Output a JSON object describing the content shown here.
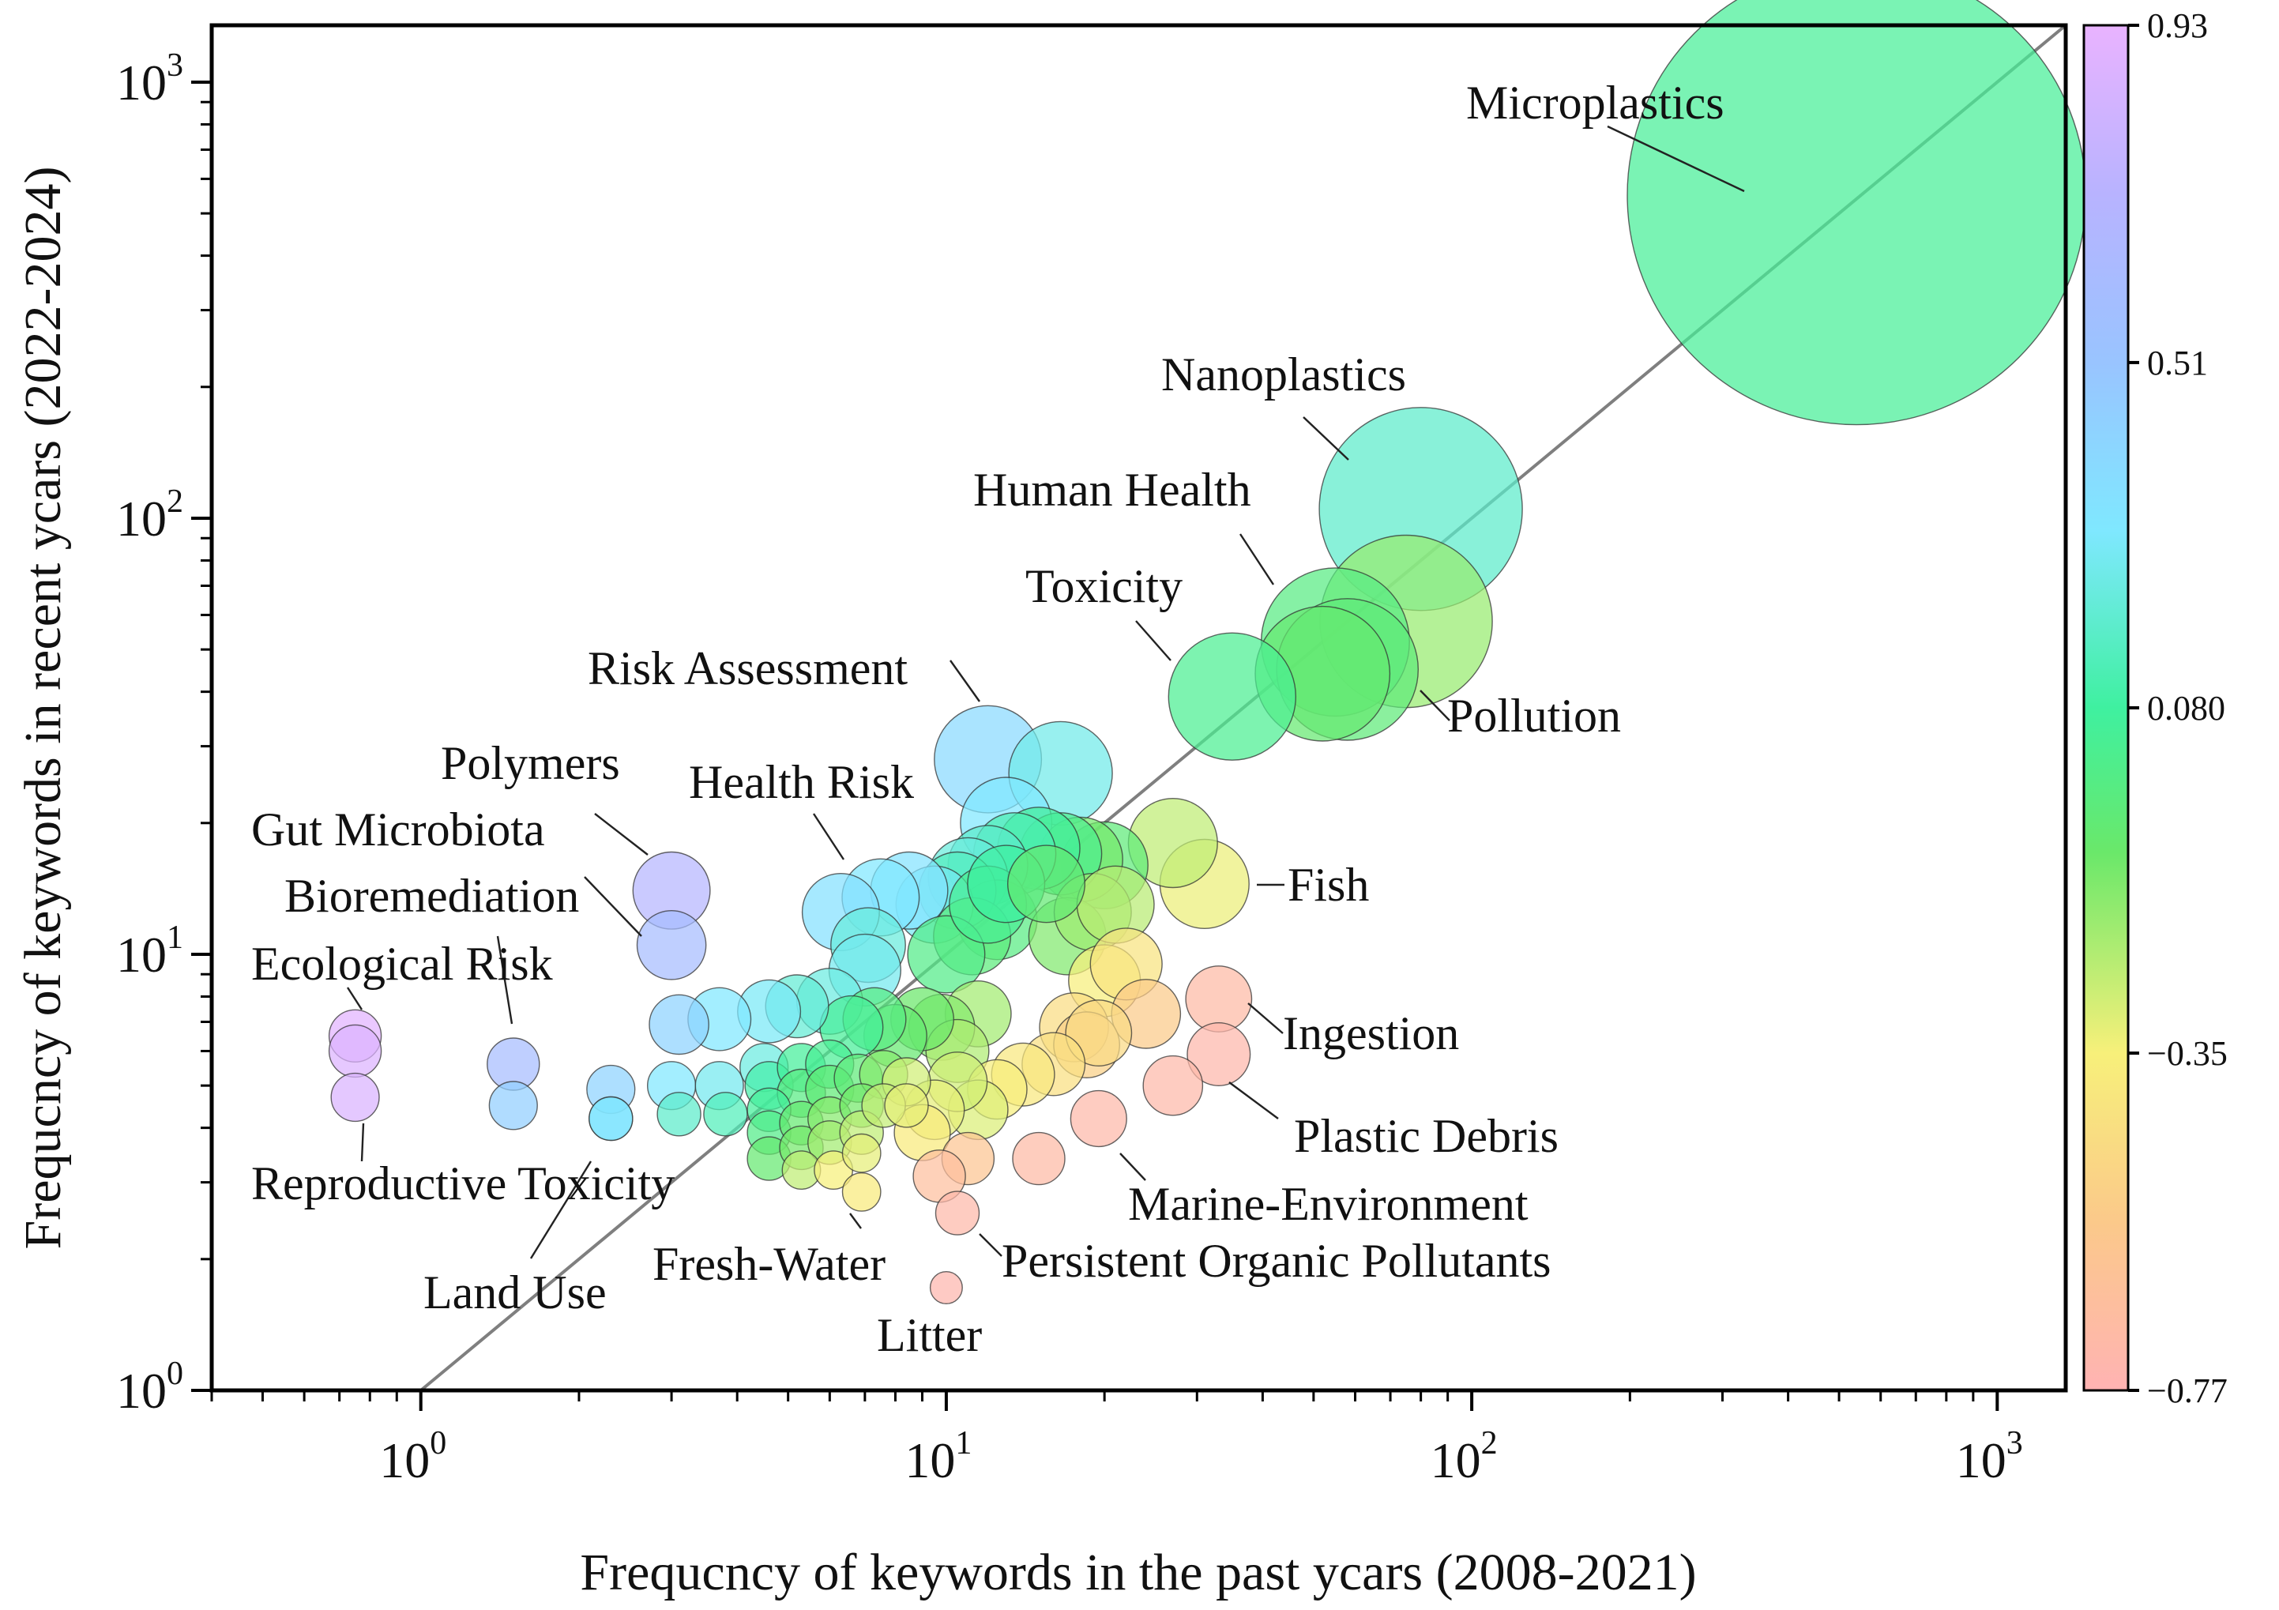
{
  "chart_data": {
    "type": "scatter",
    "subtype": "bubble",
    "xscale": "log",
    "yscale": "log",
    "xlabel": "Frequcncy of keywords in the past ycars (2008-2021)",
    "ylabel": "Frequcncy of keywords in recent ycars (2022-2024)",
    "xlim": [
      0.4,
      1350
    ],
    "ylim": [
      1,
      1350
    ],
    "x_ticks": [
      {
        "value": 1,
        "base": "10",
        "exp": "0"
      },
      {
        "value": 10,
        "base": "10",
        "exp": "1"
      },
      {
        "value": 100,
        "base": "10",
        "exp": "2"
      },
      {
        "value": 1000,
        "base": "10",
        "exp": "3"
      }
    ],
    "y_ticks": [
      {
        "value": 1,
        "base": "10",
        "exp": "0"
      },
      {
        "value": 10,
        "base": "10",
        "exp": "1"
      },
      {
        "value": 100,
        "base": "10",
        "exp": "2"
      },
      {
        "value": 1000,
        "base": "10",
        "exp": "3"
      }
    ],
    "reference_line": "y = x",
    "colorbar": {
      "min": -0.77,
      "max": 0.93,
      "ticks": [
        {
          "value": 0.93,
          "label": "0.93"
        },
        {
          "value": 0.51,
          "label": "0.51"
        },
        {
          "value": 0.08,
          "label": "0.080"
        },
        {
          "value": -0.35,
          "label": "−0.35"
        },
        {
          "value": -0.77,
          "label": "−0.77"
        }
      ],
      "stops": [
        {
          "value": 0.93,
          "color": "#e9b3ff"
        },
        {
          "value": 0.72,
          "color": "#b8b3ff"
        },
        {
          "value": 0.51,
          "color": "#99c4ff"
        },
        {
          "value": 0.3,
          "color": "#7fe8ff"
        },
        {
          "value": 0.08,
          "color": "#3ff0a0"
        },
        {
          "value": -0.1,
          "color": "#6ae86a"
        },
        {
          "value": -0.35,
          "color": "#f7f07a"
        },
        {
          "value": -0.56,
          "color": "#fbc98a"
        },
        {
          "value": -0.77,
          "color": "#ffb3b3"
        }
      ]
    },
    "points": [
      {
        "label": "Microplastics",
        "x": 540,
        "y": 550,
        "size": 550,
        "value": 0.05
      },
      {
        "label": "Nanoplastics",
        "x": 80,
        "y": 105,
        "size": 105,
        "value": 0.18
      },
      {
        "label": "Pollution",
        "x": 75,
        "y": 58,
        "size": 75,
        "value": -0.18
      },
      {
        "label": "Human Health",
        "x": 55,
        "y": 52,
        "size": 55,
        "value": -0.02
      },
      {
        "label": "",
        "x": 58,
        "y": 45,
        "size": 50,
        "value": -0.05
      },
      {
        "label": "",
        "x": 52,
        "y": 44,
        "size": 45,
        "value": -0.08
      },
      {
        "label": "Toxicity",
        "x": 35,
        "y": 39,
        "size": 40,
        "value": 0.03
      },
      {
        "label": "Risk Assessment",
        "x": 12,
        "y": 28,
        "size": 28,
        "value": 0.38
      },
      {
        "label": "",
        "x": 16.5,
        "y": 26,
        "size": 26,
        "value": 0.25
      },
      {
        "label": "",
        "x": 13,
        "y": 20,
        "size": 20,
        "value": 0.3
      },
      {
        "label": "Fish",
        "x": 31,
        "y": 14.5,
        "size": 19,
        "value": -0.33
      },
      {
        "label": "",
        "x": 27,
        "y": 18,
        "size": 19,
        "value": -0.25
      },
      {
        "label": "",
        "x": 20,
        "y": 16,
        "size": 18,
        "value": -0.05
      },
      {
        "label": "",
        "x": 18,
        "y": 16.5,
        "size": 17,
        "value": -0.12
      },
      {
        "label": "",
        "x": 16.5,
        "y": 17,
        "size": 16,
        "value": 0.02
      },
      {
        "label": "",
        "x": 15,
        "y": 17.5,
        "size": 16,
        "value": 0.06
      },
      {
        "label": "",
        "x": 13.5,
        "y": 17,
        "size": 16,
        "value": 0.12
      },
      {
        "label": "",
        "x": 12,
        "y": 16,
        "size": 15,
        "value": 0.18
      },
      {
        "label": "",
        "x": 11,
        "y": 15,
        "size": 15,
        "value": 0.22
      },
      {
        "label": "",
        "x": 10.5,
        "y": 14,
        "size": 14,
        "value": 0.15
      },
      {
        "label": "",
        "x": 9.5,
        "y": 13,
        "size": 14,
        "value": 0.27
      },
      {
        "label": "",
        "x": 8.5,
        "y": 14,
        "size": 14,
        "value": 0.33
      },
      {
        "label": "Health Risk",
        "x": 7.5,
        "y": 13.5,
        "size": 14,
        "value": 0.3
      },
      {
        "label": "",
        "x": 6.3,
        "y": 12.5,
        "size": 14,
        "value": 0.34
      },
      {
        "label": "",
        "x": 7.1,
        "y": 10.5,
        "size": 13,
        "value": 0.22
      },
      {
        "label": "",
        "x": 7,
        "y": 9.2,
        "size": 12,
        "value": 0.26
      },
      {
        "label": "",
        "x": 12.5,
        "y": 12,
        "size": 15,
        "value": -0.02
      },
      {
        "label": "",
        "x": 11.2,
        "y": 11,
        "size": 14,
        "value": -0.04
      },
      {
        "label": "",
        "x": 10,
        "y": 10,
        "size": 14,
        "value": 0.0
      },
      {
        "label": "",
        "x": 12,
        "y": 13,
        "size": 14,
        "value": 0.04
      },
      {
        "label": "",
        "x": 13,
        "y": 14.5,
        "size": 14,
        "value": 0.08
      },
      {
        "label": "",
        "x": 17,
        "y": 11,
        "size": 14,
        "value": -0.14
      },
      {
        "label": "",
        "x": 19,
        "y": 12.5,
        "size": 14,
        "value": -0.19
      },
      {
        "label": "",
        "x": 21,
        "y": 13,
        "size": 14,
        "value": -0.24
      },
      {
        "label": "",
        "x": 15.5,
        "y": 14.5,
        "size": 14,
        "value": -0.07
      },
      {
        "label": "",
        "x": 20,
        "y": 8.7,
        "size": 12,
        "value": -0.36
      },
      {
        "label": "",
        "x": 22,
        "y": 9.5,
        "size": 12,
        "value": -0.42
      },
      {
        "label": "",
        "x": 24,
        "y": 7.3,
        "size": 11,
        "value": -0.55
      },
      {
        "label": "Ingestion",
        "x": 33,
        "y": 7.9,
        "size": 10,
        "value": -0.7
      },
      {
        "label": "Plastic Debris",
        "x": 33,
        "y": 5.9,
        "size": 9,
        "value": -0.73
      },
      {
        "label": "",
        "x": 27,
        "y": 5,
        "size": 8,
        "value": -0.72
      },
      {
        "label": "Marine-Environment",
        "x": 19.5,
        "y": 4.2,
        "size": 7,
        "value": -0.72
      },
      {
        "label": "",
        "x": 15,
        "y": 3.4,
        "size": 6,
        "value": -0.7
      },
      {
        "label": "",
        "x": 11,
        "y": 3.4,
        "size": 6,
        "value": -0.6
      },
      {
        "label": "",
        "x": 9.7,
        "y": 3.1,
        "size": 6,
        "value": -0.66
      },
      {
        "label": "Persistent Organic Pollutants",
        "x": 10.5,
        "y": 2.55,
        "size": 4,
        "value": -0.72
      },
      {
        "label": "Litter",
        "x": 10,
        "y": 1.72,
        "size": 2,
        "value": -0.74
      },
      {
        "label": "",
        "x": 17.5,
        "y": 6.8,
        "size": 11,
        "value": -0.46
      },
      {
        "label": "",
        "x": 18.5,
        "y": 6.2,
        "size": 10,
        "value": -0.52
      },
      {
        "label": "",
        "x": 19.5,
        "y": 6.6,
        "size": 10,
        "value": -0.47
      },
      {
        "label": "",
        "x": 16,
        "y": 5.6,
        "size": 9,
        "value": -0.44
      },
      {
        "label": "",
        "x": 14,
        "y": 5.3,
        "size": 9,
        "value": -0.4
      },
      {
        "label": "",
        "x": 12.5,
        "y": 4.9,
        "size": 8,
        "value": -0.36
      },
      {
        "label": "",
        "x": 11.5,
        "y": 4.4,
        "size": 8,
        "value": -0.3
      },
      {
        "label": "",
        "x": 10.5,
        "y": 5.1,
        "size": 8,
        "value": -0.28
      },
      {
        "label": "",
        "x": 9.5,
        "y": 4.4,
        "size": 8,
        "value": -0.32
      },
      {
        "label": "",
        "x": 9,
        "y": 3.9,
        "size": 7,
        "value": -0.38
      },
      {
        "label": "",
        "x": 10.5,
        "y": 6,
        "size": 9,
        "value": -0.22
      },
      {
        "label": "",
        "x": 11.5,
        "y": 7.3,
        "size": 10,
        "value": -0.2
      },
      {
        "label": "",
        "x": 9.8,
        "y": 6.8,
        "size": 10,
        "value": -0.15
      },
      {
        "label": "",
        "x": 9,
        "y": 7.1,
        "size": 9,
        "value": -0.1
      },
      {
        "label": "",
        "x": 8,
        "y": 6.5,
        "size": 9,
        "value": -0.08
      },
      {
        "label": "",
        "x": 7.3,
        "y": 7.1,
        "size": 9,
        "value": -0.02
      },
      {
        "label": "",
        "x": 6.6,
        "y": 6.8,
        "size": 9,
        "value": 0.05
      },
      {
        "label": "",
        "x": 6,
        "y": 7.8,
        "size": 10,
        "value": 0.23
      },
      {
        "label": "",
        "x": 5.2,
        "y": 7.6,
        "size": 9,
        "value": 0.2
      },
      {
        "label": "",
        "x": 4.6,
        "y": 7.4,
        "size": 9,
        "value": 0.28
      },
      {
        "label": "",
        "x": 3.7,
        "y": 7.1,
        "size": 9,
        "value": 0.3
      },
      {
        "label": "",
        "x": 3.1,
        "y": 6.9,
        "size": 8,
        "value": 0.42
      },
      {
        "label": "Polymers",
        "x": 3,
        "y": 14,
        "size": 14,
        "value": 0.7
      },
      {
        "label": "Gut Microbiota",
        "x": 3,
        "y": 10.5,
        "size": 11,
        "value": 0.6
      },
      {
        "label": "Bioremediation",
        "x": 1.5,
        "y": 5.6,
        "size": 6,
        "value": 0.6
      },
      {
        "label": "",
        "x": 1.5,
        "y": 4.5,
        "size": 5,
        "value": 0.45
      },
      {
        "label": "",
        "x": 2.3,
        "y": 4.9,
        "size": 5,
        "value": 0.42
      },
      {
        "label": "",
        "x": 2.3,
        "y": 4.2,
        "size": 4,
        "value": 0.36
      },
      {
        "label": "Ecological Risk",
        "x": 0.75,
        "y": 6.5,
        "size": 6,
        "value": 0.9
      },
      {
        "label": "",
        "x": 0.75,
        "y": 6,
        "size": 6,
        "value": 0.88
      },
      {
        "label": "Reproductive Toxicity",
        "x": 0.75,
        "y": 4.7,
        "size": 5,
        "value": 0.86
      },
      {
        "label": "",
        "x": 3,
        "y": 5,
        "size": 5,
        "value": 0.3
      },
      {
        "label": "",
        "x": 3.1,
        "y": 4.3,
        "size": 4,
        "value": 0.18
      },
      {
        "label": "",
        "x": 3.7,
        "y": 5,
        "size": 5,
        "value": 0.26
      },
      {
        "label": "",
        "x": 3.8,
        "y": 4.3,
        "size": 4,
        "value": 0.14
      },
      {
        "label": "",
        "x": 4.5,
        "y": 5.5,
        "size": 5,
        "value": 0.23
      },
      {
        "label": "",
        "x": 4.6,
        "y": 5,
        "size": 5,
        "value": 0.1
      },
      {
        "label": "",
        "x": 4.6,
        "y": 4.4,
        "size": 4,
        "value": 0.06
      },
      {
        "label": "",
        "x": 4.6,
        "y": 3.9,
        "size": 4,
        "value": 0.0
      },
      {
        "label": "",
        "x": 4.6,
        "y": 3.4,
        "size": 4,
        "value": -0.08
      },
      {
        "label": "",
        "x": 5.3,
        "y": 5.5,
        "size": 5,
        "value": 0.06
      },
      {
        "label": "",
        "x": 5.3,
        "y": 4.8,
        "size": 5,
        "value": -0.02
      },
      {
        "label": "",
        "x": 5.3,
        "y": 4.1,
        "size": 4,
        "value": -0.08
      },
      {
        "label": "",
        "x": 5.3,
        "y": 3.6,
        "size": 4,
        "value": -0.12
      },
      {
        "label": "",
        "x": 5.3,
        "y": 3.2,
        "size": 3,
        "value": -0.25
      },
      {
        "label": "",
        "x": 6,
        "y": 5.6,
        "size": 5,
        "value": 0.04
      },
      {
        "label": "",
        "x": 6,
        "y": 4.9,
        "size": 5,
        "value": -0.06
      },
      {
        "label": "",
        "x": 6,
        "y": 4.2,
        "size": 4,
        "value": -0.15
      },
      {
        "label": "",
        "x": 6,
        "y": 3.7,
        "size": 4,
        "value": -0.2
      },
      {
        "label": "Fresh-Water",
        "x": 6.1,
        "y": 3.2,
        "size": 3,
        "value": -0.35
      },
      {
        "label": "",
        "x": 6.8,
        "y": 5.2,
        "size": 5,
        "value": -0.05
      },
      {
        "label": "",
        "x": 6.9,
        "y": 4.5,
        "size": 4,
        "value": -0.12
      },
      {
        "label": "",
        "x": 6.9,
        "y": 3.9,
        "size": 4,
        "value": -0.25
      },
      {
        "label": "",
        "x": 6.9,
        "y": 3.5,
        "size": 3,
        "value": -0.32
      },
      {
        "label": "",
        "x": 6.9,
        "y": 2.85,
        "size": 3,
        "value": -0.38
      },
      {
        "label": "",
        "x": 7.6,
        "y": 5.3,
        "size": 5,
        "value": -0.15
      },
      {
        "label": "",
        "x": 7.6,
        "y": 4.5,
        "size": 4,
        "value": -0.26
      },
      {
        "label": "",
        "x": 8.4,
        "y": 5.1,
        "size": 5,
        "value": -0.28
      },
      {
        "label": "",
        "x": 8.4,
        "y": 4.5,
        "size": 4,
        "value": -0.32
      },
      {
        "label": "Land Use",
        "x": 2.3,
        "y": 4.2,
        "size": 4,
        "value": 0.3
      }
    ],
    "annotations": [
      {
        "id": "microplastics",
        "text": "Microplastics"
      },
      {
        "id": "nanoplastics",
        "text": "Nanoplastics"
      },
      {
        "id": "human_health",
        "text": "Human Health"
      },
      {
        "id": "toxicity",
        "text": "Toxicity"
      },
      {
        "id": "pollution",
        "text": "Pollution"
      },
      {
        "id": "risk_assessment",
        "text": "Risk Assessment"
      },
      {
        "id": "polymers",
        "text": "Polymers"
      },
      {
        "id": "health_risk",
        "text": "Health Risk"
      },
      {
        "id": "gut_microbiota",
        "text": "Gut Microbiota"
      },
      {
        "id": "fish",
        "text": "Fish"
      },
      {
        "id": "bioremediation",
        "text": "Bioremediation"
      },
      {
        "id": "ecological_risk",
        "text": "Ecological Risk"
      },
      {
        "id": "ingestion",
        "text": "Ingestion"
      },
      {
        "id": "plastic_debris",
        "text": "Plastic Debris"
      },
      {
        "id": "reproductive_toxicity",
        "text": "Reproductive Toxicity"
      },
      {
        "id": "marine_environment",
        "text": "Marine-Environment"
      },
      {
        "id": "land_use",
        "text": "Land Use"
      },
      {
        "id": "fresh_water",
        "text": "Fresh-Water"
      },
      {
        "id": "persistent_organic_pollutants",
        "text": "Persistent Organic Pollutants"
      },
      {
        "id": "litter",
        "text": "Litter"
      }
    ]
  }
}
